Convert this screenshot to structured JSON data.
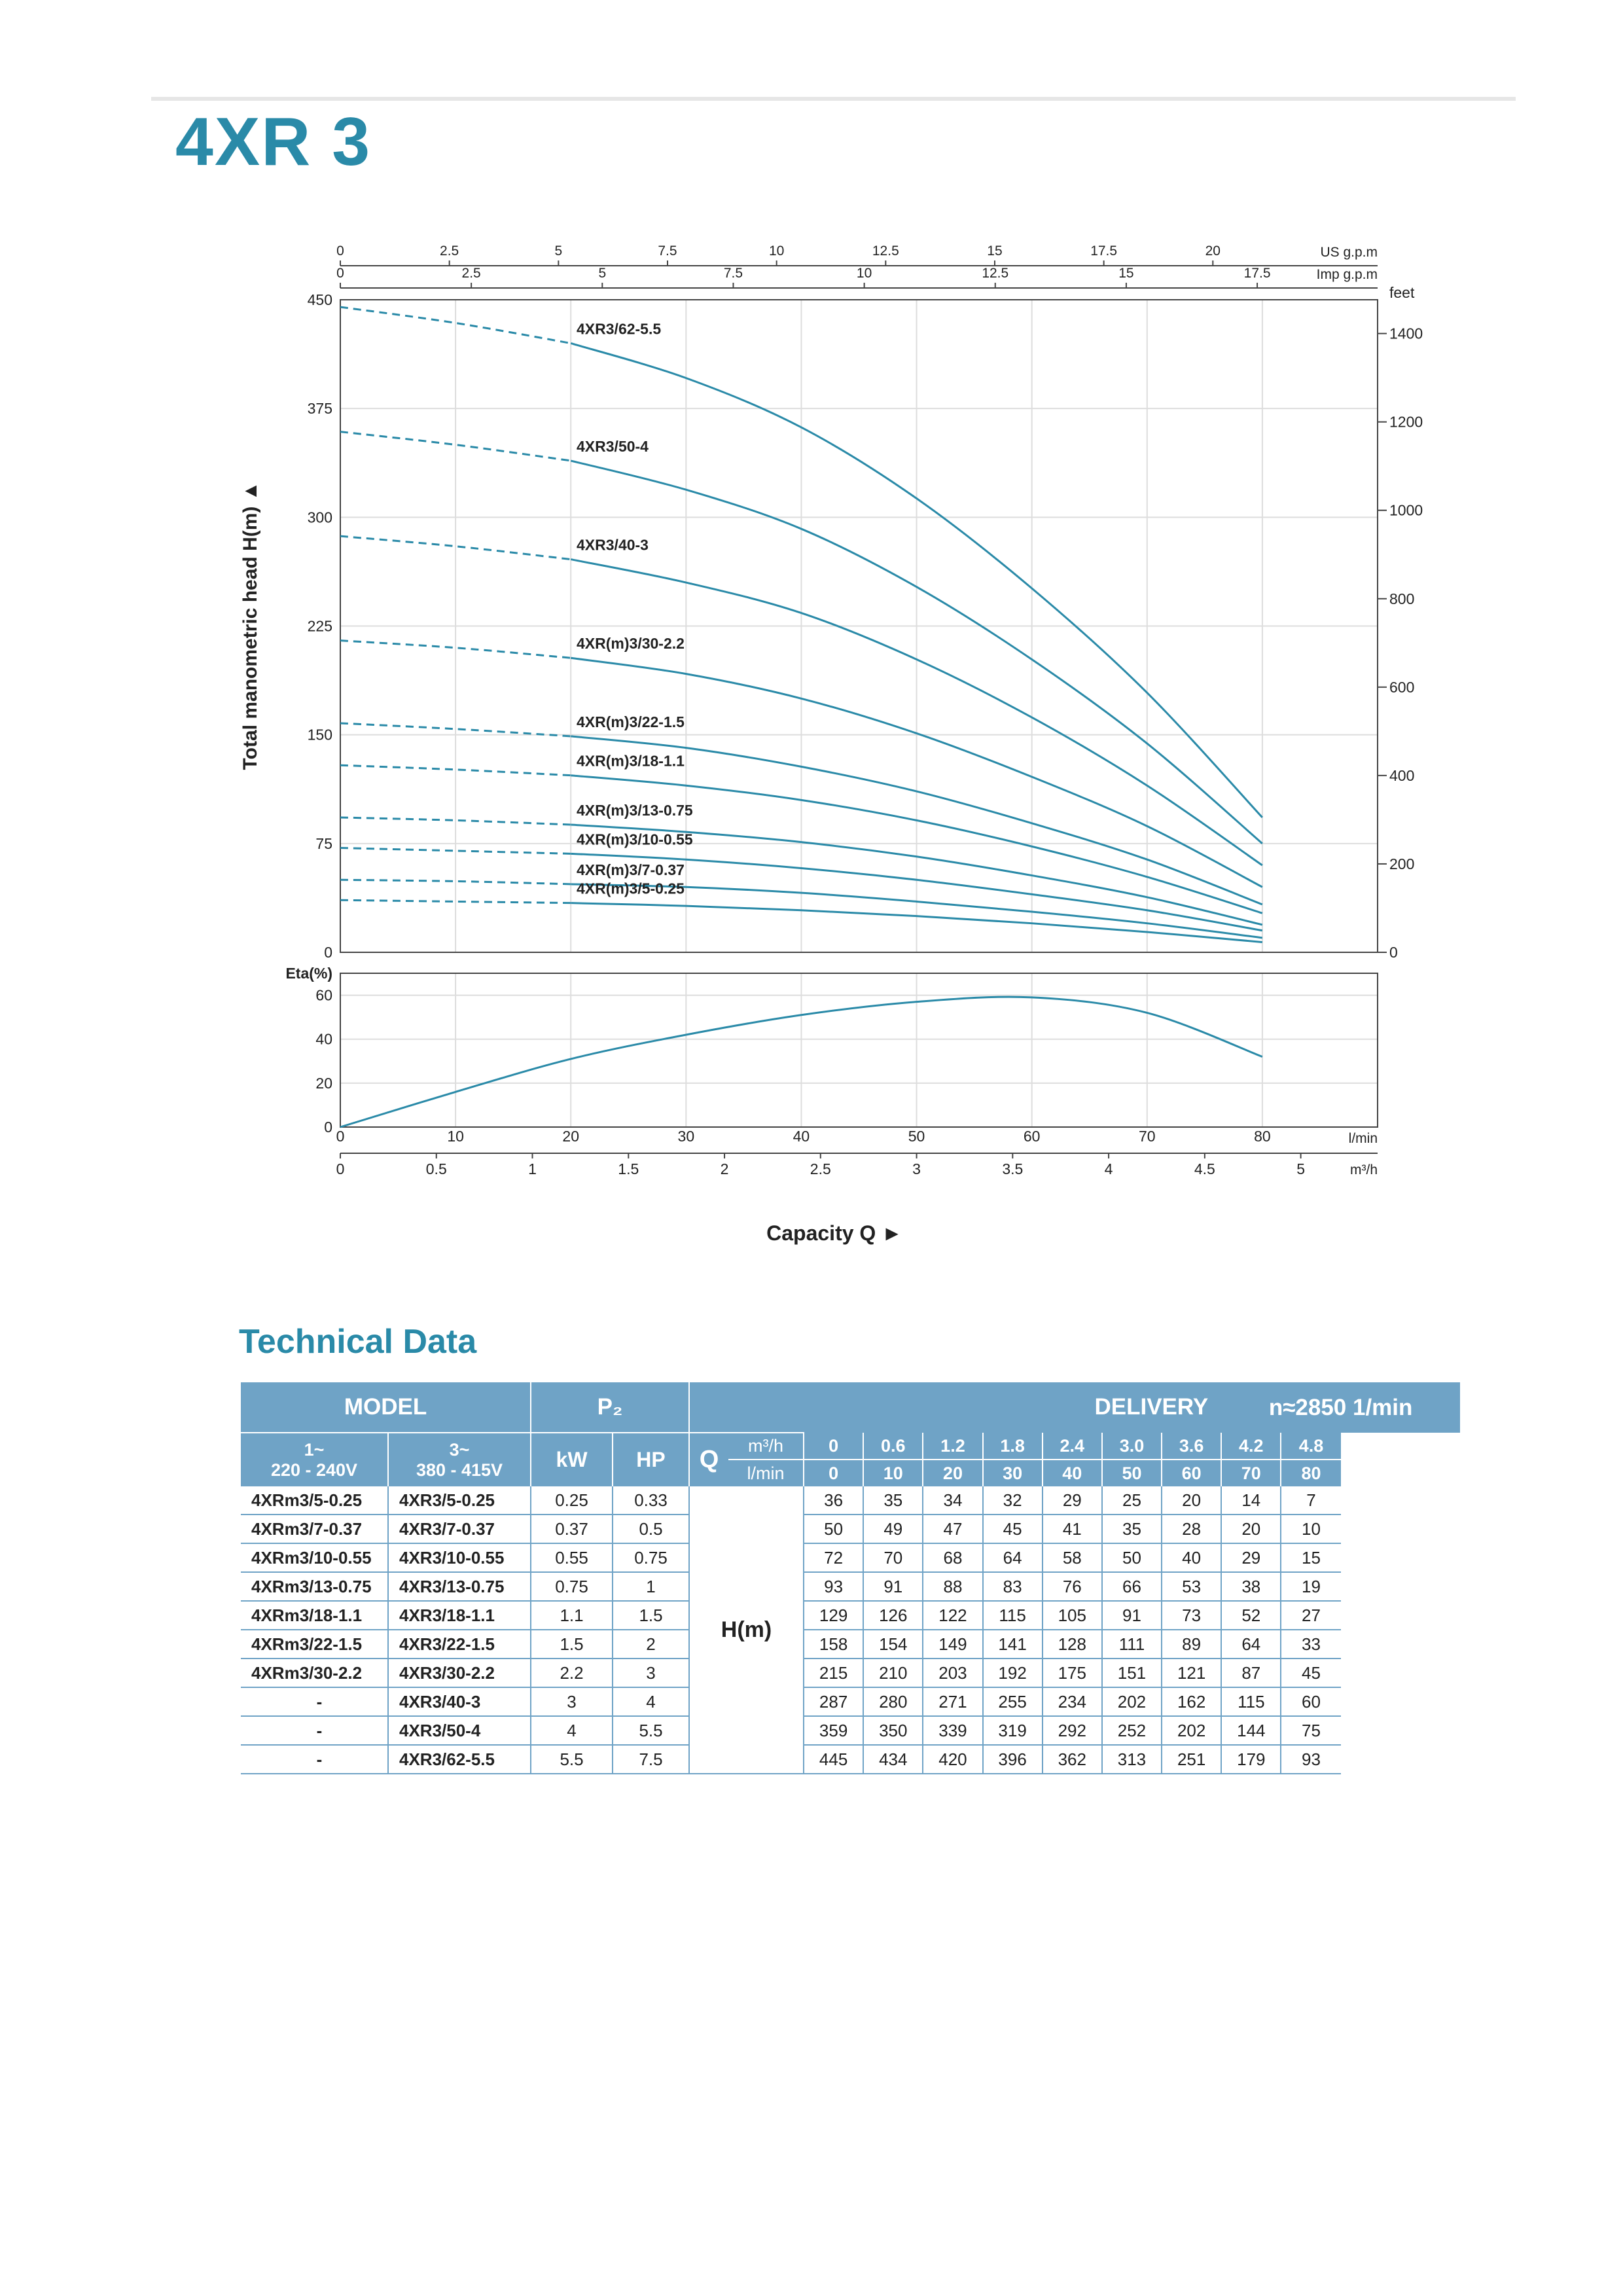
{
  "page": {
    "title": "4XR 3",
    "section_title": "Technical Data"
  },
  "colors": {
    "accent": "#2a8aa8",
    "curve": "#2a8aa8",
    "table_header": "#6fa3c6",
    "grid": "#dddddd"
  },
  "chart_data": [
    {
      "type": "line",
      "name": "performance",
      "ylabel": "Total manometric head H(m)",
      "xlabel": "Capacity Q",
      "ylim": [
        0,
        450
      ],
      "yticks": [
        "0",
        "75",
        "150",
        "225",
        "300",
        "375",
        "450"
      ],
      "xlim_lmin": [
        0,
        90
      ],
      "grid": true,
      "right_axis": {
        "unit": "feet",
        "ticks": [
          "0",
          "200",
          "400",
          "600",
          "800",
          "1000",
          "1200",
          "1400"
        ]
      },
      "top_axes": [
        {
          "unit": "US g.p.m",
          "ticks": [
            "0",
            "2.5",
            "5",
            "7.5",
            "10",
            "12.5",
            "15",
            "17.5",
            "20"
          ]
        },
        {
          "unit": "Imp g.p.m",
          "ticks": [
            "0",
            "2.5",
            "5",
            "7.5",
            "10",
            "12.5",
            "15",
            "17.5"
          ]
        }
      ],
      "series": [
        {
          "name": "4XR3/62-5.5",
          "x": [
            0,
            10,
            20,
            30,
            40,
            50,
            60,
            70,
            80
          ],
          "values": [
            445,
            434,
            420,
            396,
            362,
            313,
            251,
            179,
            93
          ]
        },
        {
          "name": "4XR3/50-4",
          "x": [
            0,
            10,
            20,
            30,
            40,
            50,
            60,
            70,
            80
          ],
          "values": [
            359,
            350,
            339,
            319,
            292,
            252,
            202,
            144,
            75
          ]
        },
        {
          "name": "4XR3/40-3",
          "x": [
            0,
            10,
            20,
            30,
            40,
            50,
            60,
            70,
            80
          ],
          "values": [
            287,
            280,
            271,
            255,
            234,
            202,
            162,
            115,
            60
          ]
        },
        {
          "name": "4XR(m)3/30-2.2",
          "x": [
            0,
            10,
            20,
            30,
            40,
            50,
            60,
            70,
            80
          ],
          "values": [
            215,
            210,
            203,
            192,
            175,
            151,
            121,
            87,
            45
          ]
        },
        {
          "name": "4XR(m)3/22-1.5",
          "x": [
            0,
            10,
            20,
            30,
            40,
            50,
            60,
            70,
            80
          ],
          "values": [
            158,
            154,
            149,
            141,
            128,
            111,
            89,
            64,
            33
          ]
        },
        {
          "name": "4XR(m)3/18-1.1",
          "x": [
            0,
            10,
            20,
            30,
            40,
            50,
            60,
            70,
            80
          ],
          "values": [
            129,
            126,
            122,
            115,
            105,
            91,
            73,
            52,
            27
          ]
        },
        {
          "name": "4XR(m)3/13-0.75",
          "x": [
            0,
            10,
            20,
            30,
            40,
            50,
            60,
            70,
            80
          ],
          "values": [
            93,
            91,
            88,
            83,
            76,
            66,
            53,
            38,
            19
          ]
        },
        {
          "name": "4XR(m)3/10-0.55",
          "x": [
            0,
            10,
            20,
            30,
            40,
            50,
            60,
            70,
            80
          ],
          "values": [
            72,
            70,
            68,
            64,
            58,
            50,
            40,
            29,
            15
          ]
        },
        {
          "name": "4XR(m)3/7-0.37",
          "x": [
            0,
            10,
            20,
            30,
            40,
            50,
            60,
            70,
            80
          ],
          "values": [
            50,
            49,
            47,
            45,
            41,
            35,
            28,
            20,
            10
          ]
        },
        {
          "name": "4XR(m)3/5-0.25",
          "x": [
            0,
            10,
            20,
            30,
            40,
            50,
            60,
            70,
            80
          ],
          "values": [
            36,
            35,
            34,
            32,
            29,
            25,
            20,
            14,
            7
          ]
        }
      ]
    },
    {
      "type": "line",
      "name": "efficiency",
      "ylabel": "Eta(%)",
      "ylim": [
        0,
        70
      ],
      "yticks": [
        "0",
        "20",
        "40",
        "60"
      ],
      "xticks_lmin": [
        "0",
        "10",
        "20",
        "30",
        "40",
        "50",
        "60",
        "70",
        "80"
      ],
      "x_unit_lmin": "l/min",
      "xticks_m3h": [
        "0",
        "0.5",
        "1",
        "1.5",
        "2",
        "2.5",
        "3",
        "3.5",
        "4",
        "4.5",
        "5"
      ],
      "x_unit_m3h": "m³/h",
      "series": [
        {
          "name": "",
          "x": [
            0,
            10,
            20,
            30,
            40,
            50,
            60,
            70,
            80
          ],
          "values": [
            0,
            16,
            31,
            42,
            51,
            57,
            59,
            52,
            32
          ]
        }
      ]
    }
  ],
  "table": {
    "hdr_model": "MODEL",
    "hdr_p2": "P₂",
    "hdr_delivery": "DELIVERY",
    "hdr_speed": "n≈2850 1/min",
    "hdr_1ph": "1~",
    "hdr_1ph_v": "220 - 240V",
    "hdr_3ph": "3~",
    "hdr_3ph_v": "380 - 415V",
    "hdr_kw": "kW",
    "hdr_hp": "HP",
    "hdr_q": "Q",
    "hdr_m3h": "m³/h",
    "hdr_lmin": "l/min",
    "hdr_h": "H(m)",
    "q_m3h": [
      "0",
      "0.6",
      "1.2",
      "1.8",
      "2.4",
      "3.0",
      "3.6",
      "4.2",
      "4.8"
    ],
    "q_lmin": [
      "0",
      "10",
      "20",
      "30",
      "40",
      "50",
      "60",
      "70",
      "80"
    ],
    "rows": [
      {
        "m1": "4XRm3/5-0.25",
        "m3": "4XR3/5-0.25",
        "kw": "0.25",
        "hp": "0.33",
        "h": [
          "36",
          "35",
          "34",
          "32",
          "29",
          "25",
          "20",
          "14",
          "7"
        ]
      },
      {
        "m1": "4XRm3/7-0.37",
        "m3": "4XR3/7-0.37",
        "kw": "0.37",
        "hp": "0.5",
        "h": [
          "50",
          "49",
          "47",
          "45",
          "41",
          "35",
          "28",
          "20",
          "10"
        ]
      },
      {
        "m1": "4XRm3/10-0.55",
        "m3": "4XR3/10-0.55",
        "kw": "0.55",
        "hp": "0.75",
        "h": [
          "72",
          "70",
          "68",
          "64",
          "58",
          "50",
          "40",
          "29",
          "15"
        ]
      },
      {
        "m1": "4XRm3/13-0.75",
        "m3": "4XR3/13-0.75",
        "kw": "0.75",
        "hp": "1",
        "h": [
          "93",
          "91",
          "88",
          "83",
          "76",
          "66",
          "53",
          "38",
          "19"
        ]
      },
      {
        "m1": "4XRm3/18-1.1",
        "m3": "4XR3/18-1.1",
        "kw": "1.1",
        "hp": "1.5",
        "h": [
          "129",
          "126",
          "122",
          "115",
          "105",
          "91",
          "73",
          "52",
          "27"
        ]
      },
      {
        "m1": "4XRm3/22-1.5",
        "m3": "4XR3/22-1.5",
        "kw": "1.5",
        "hp": "2",
        "h": [
          "158",
          "154",
          "149",
          "141",
          "128",
          "111",
          "89",
          "64",
          "33"
        ]
      },
      {
        "m1": "4XRm3/30-2.2",
        "m3": "4XR3/30-2.2",
        "kw": "2.2",
        "hp": "3",
        "h": [
          "215",
          "210",
          "203",
          "192",
          "175",
          "151",
          "121",
          "87",
          "45"
        ]
      },
      {
        "m1": "-",
        "m3": "4XR3/40-3",
        "kw": "3",
        "hp": "4",
        "h": [
          "287",
          "280",
          "271",
          "255",
          "234",
          "202",
          "162",
          "115",
          "60"
        ]
      },
      {
        "m1": "-",
        "m3": "4XR3/50-4",
        "kw": "4",
        "hp": "5.5",
        "h": [
          "359",
          "350",
          "339",
          "319",
          "292",
          "252",
          "202",
          "144",
          "75"
        ]
      },
      {
        "m1": "-",
        "m3": "4XR3/62-5.5",
        "kw": "5.5",
        "hp": "7.5",
        "h": [
          "445",
          "434",
          "420",
          "396",
          "362",
          "313",
          "251",
          "179",
          "93"
        ]
      }
    ]
  }
}
